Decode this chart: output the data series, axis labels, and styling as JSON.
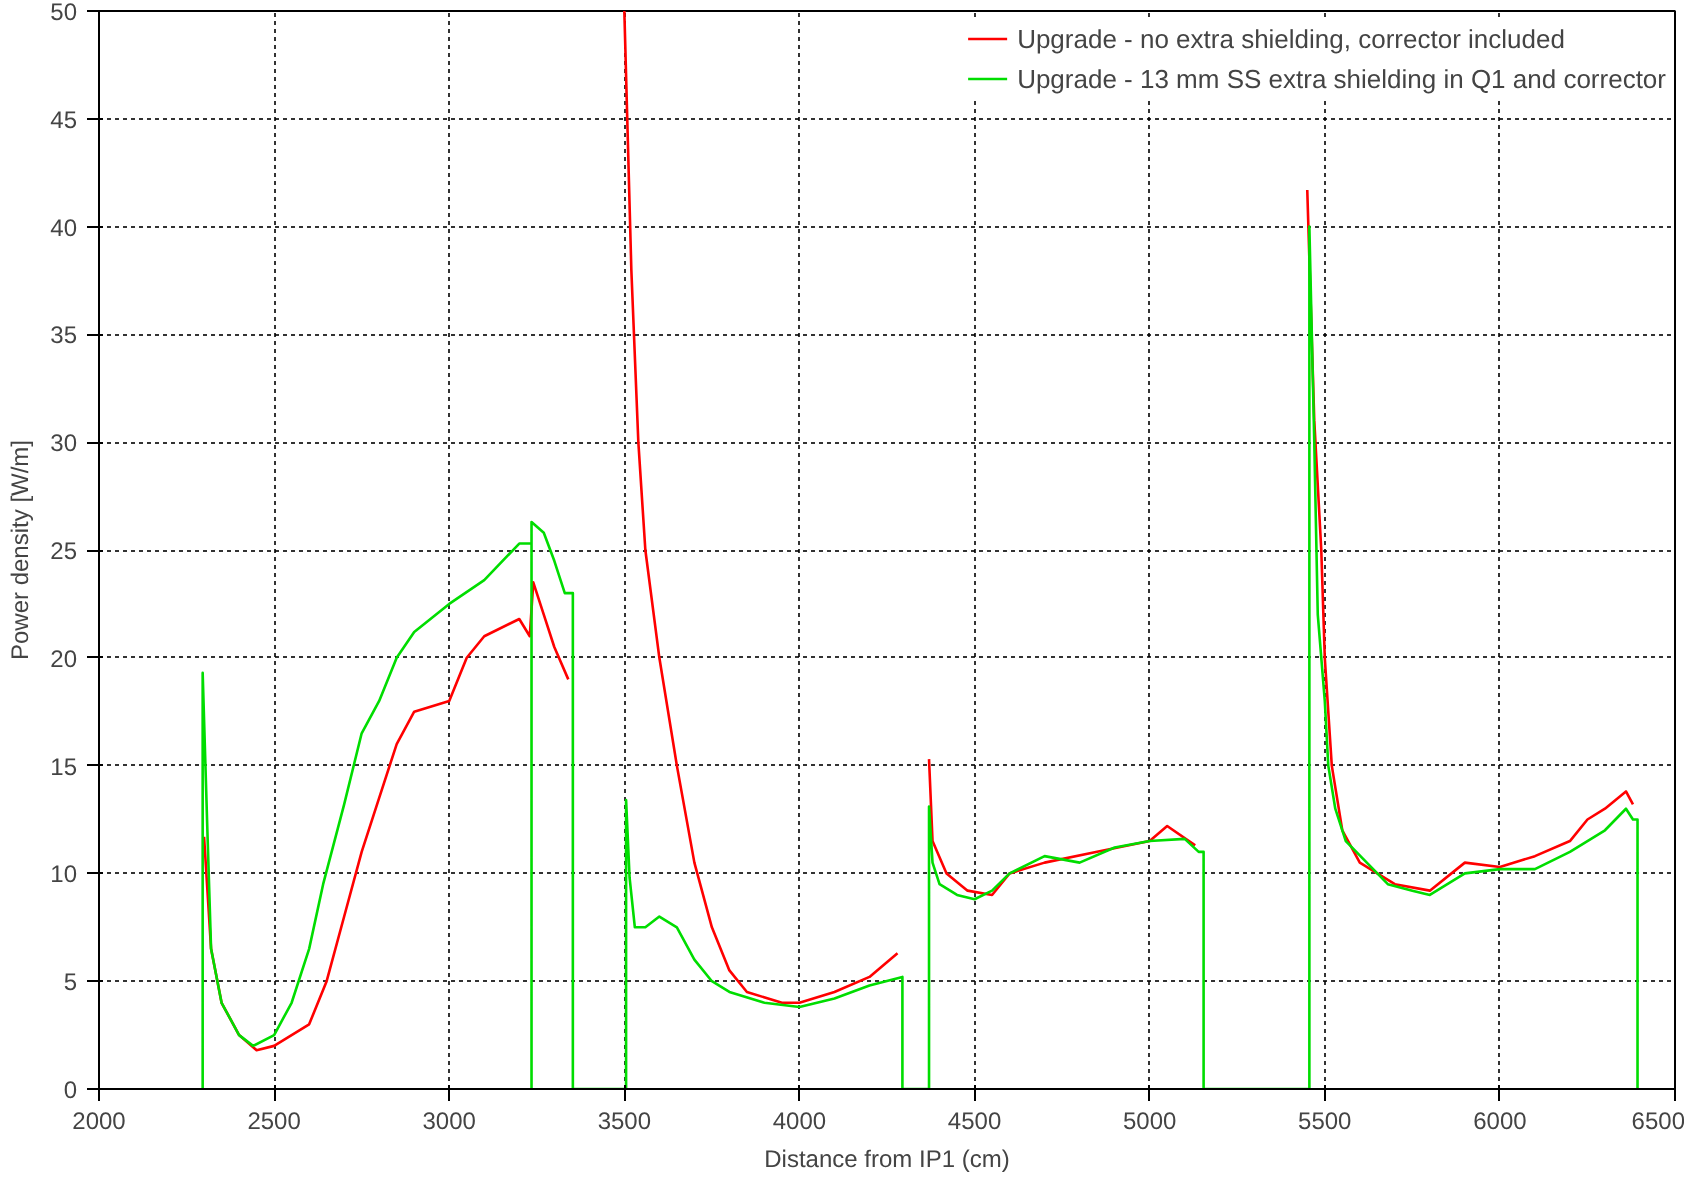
{
  "chart_data": {
    "type": "line",
    "xlabel": "Distance from IP1 (cm)",
    "ylabel": "Power density [W/m]",
    "xlim": [
      2000,
      6500
    ],
    "xticks": [
      2000,
      2500,
      3000,
      3500,
      4000,
      4500,
      5000,
      5500,
      6000,
      6500
    ],
    "ylim": [
      0,
      50
    ],
    "yticks": [
      0,
      5,
      10,
      15,
      20,
      25,
      30,
      35,
      40,
      45,
      50
    ],
    "grid": true,
    "legend": "top right",
    "line_style": "solid",
    "marker": "none",
    "series": [
      {
        "name": "Upgrade - no extra shielding, corrector included",
        "color": "#ff0000",
        "x": [
          2300,
          2320,
          2350,
          2400,
          2450,
          2500,
          2600,
          2650,
          2700,
          2750,
          2800,
          2850,
          2900,
          3000,
          3050,
          3100,
          3200,
          3230,
          3240,
          3270,
          3300,
          3340,
          3420,
          3500,
          3520,
          3540,
          3560,
          3600,
          3650,
          3700,
          3750,
          3800,
          3850,
          3950,
          4000,
          4100,
          4200,
          4280,
          4330,
          4370,
          4380,
          4420,
          4480,
          4550,
          4600,
          4700,
          4850,
          5000,
          5050,
          5130,
          5300,
          5450,
          5470,
          5490,
          5500,
          5520,
          5550,
          5600,
          5700,
          5800,
          5900,
          6000,
          6100,
          6200,
          6250,
          6300,
          6360,
          6380
        ],
        "values": [
          11.7,
          6.5,
          4,
          2.5,
          1.8,
          2,
          3,
          5,
          8,
          11,
          13.5,
          16,
          17.5,
          18,
          20,
          21,
          21.8,
          21,
          23.5,
          22,
          20.5,
          19,
          null,
          50,
          38,
          30,
          25,
          20,
          15,
          10.5,
          7.5,
          5.5,
          4.5,
          4,
          4,
          4.5,
          5.2,
          6.3,
          null,
          15.3,
          11.5,
          10,
          9.2,
          9,
          10,
          10.5,
          11,
          11.5,
          12.2,
          11.3,
          null,
          41.7,
          31,
          25,
          20,
          15,
          12,
          10.5,
          9.5,
          9.2,
          10.5,
          10.3,
          10.8,
          11.5,
          12.5,
          13,
          13.8,
          13.2
        ]
      },
      {
        "name": "Upgrade - 13 mm SS extra shielding in Q1 and corrector",
        "color": "#00dd00",
        "x": [
          2296,
          2296,
          2310,
          2320,
          2350,
          2400,
          2440,
          2500,
          2550,
          2600,
          2640,
          2700,
          2750,
          2800,
          2850,
          2900,
          3000,
          3100,
          3200,
          3235,
          3235,
          3235,
          3270,
          3300,
          3330,
          3353,
          3353,
          3505,
          3505,
          3515,
          3530,
          3560,
          3600,
          3650,
          3700,
          3750,
          3800,
          3900,
          4000,
          4100,
          4200,
          4294,
          4294,
          4370,
          4370,
          4380,
          4400,
          4450,
          4500,
          4550,
          4600,
          4700,
          4800,
          4900,
          5000,
          5100,
          5140,
          5154,
          5154,
          5456,
          5456,
          5470,
          5480,
          5500,
          5510,
          5530,
          5560,
          5620,
          5680,
          5750,
          5800,
          5900,
          6000,
          6100,
          6200,
          6250,
          6300,
          6360,
          6380,
          6393,
          6393
        ],
        "values": [
          0,
          19.3,
          11.7,
          6.5,
          4,
          2.5,
          2,
          2.5,
          4,
          6.5,
          9.5,
          13.2,
          16.5,
          18,
          20,
          21.2,
          22.5,
          23.6,
          25.3,
          25.3,
          0,
          26.3,
          25.8,
          24.5,
          23,
          23,
          0,
          0,
          13.4,
          9.8,
          7.5,
          7.5,
          8,
          7.5,
          6,
          5,
          4.5,
          4,
          3.8,
          4.2,
          4.8,
          5.2,
          0,
          0,
          13.1,
          10.5,
          9.5,
          9,
          8.8,
          9.2,
          10,
          10.8,
          10.5,
          11.2,
          11.5,
          11.6,
          11,
          11,
          0,
          0,
          40,
          30,
          22,
          18,
          15,
          13,
          11.5,
          10.5,
          9.5,
          9.2,
          9,
          10,
          10.2,
          10.2,
          11,
          11.5,
          12,
          13,
          12.5,
          12.5,
          0
        ]
      }
    ]
  }
}
